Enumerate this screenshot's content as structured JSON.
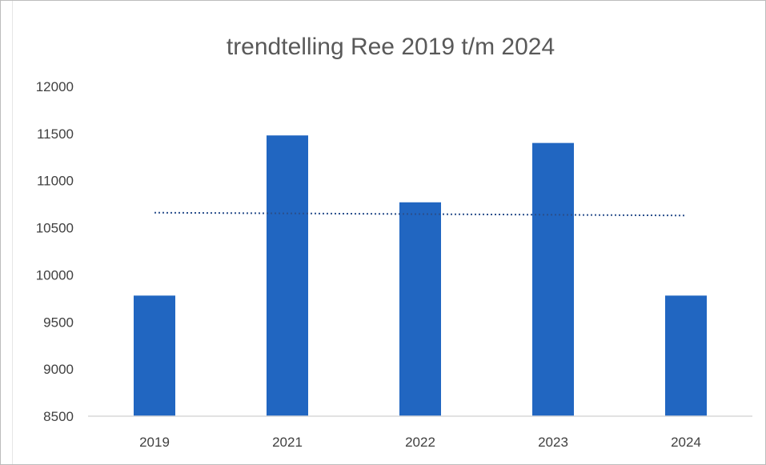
{
  "chart_data": {
    "type": "bar",
    "title": "trendtelling Ree 2019 t/m 2024",
    "xlabel": "",
    "ylabel": "",
    "categories": [
      "2019",
      "2021",
      "2022",
      "2023",
      "2024"
    ],
    "values": [
      9780,
      11480,
      10770,
      11400,
      9780
    ],
    "ylim": [
      8500,
      12000
    ],
    "yticks": [
      8500,
      9000,
      9500,
      10000,
      10500,
      11000,
      11500,
      12000
    ],
    "yticklabels": [
      "8500",
      "9000",
      "9500",
      "10000",
      "10500",
      "11000",
      "11500",
      "12000"
    ],
    "trendline": {
      "type": "linear",
      "style": "dotted",
      "start": 10660,
      "end": 10630
    },
    "grid": false,
    "legend": "none",
    "colors": {
      "bar": "#2166c1",
      "trendline": "#2a4f8c",
      "axis": "#d9d9d9",
      "text": "#404040",
      "title": "#595959"
    }
  }
}
